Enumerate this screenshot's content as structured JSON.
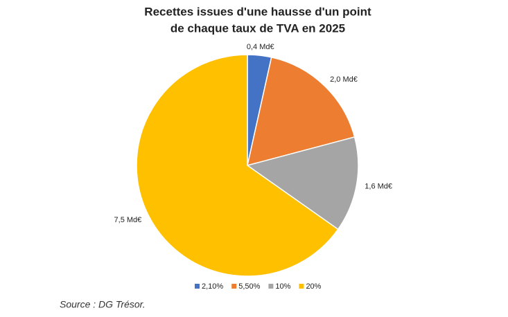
{
  "chart_data": {
    "type": "pie",
    "title": [
      "Recettes issues d'une hausse d'un point",
      "de chaque taux de TVA en 2025"
    ],
    "series": [
      {
        "name": "2,10%",
        "color": "#4472c4"
      },
      {
        "name": "5,50%",
        "color": "#ed7d31"
      },
      {
        "name": "10%",
        "color": "#a5a5a5"
      },
      {
        "name": "20%",
        "color": "#ffc000"
      }
    ],
    "values": [
      0.4,
      2.0,
      1.6,
      7.5
    ],
    "value_labels": [
      "0,4 Md€",
      "2,0 Md€",
      "1,6 Md€",
      "7,5 Md€"
    ],
    "legend": "bottom",
    "source": "Source : DG Trésor."
  }
}
